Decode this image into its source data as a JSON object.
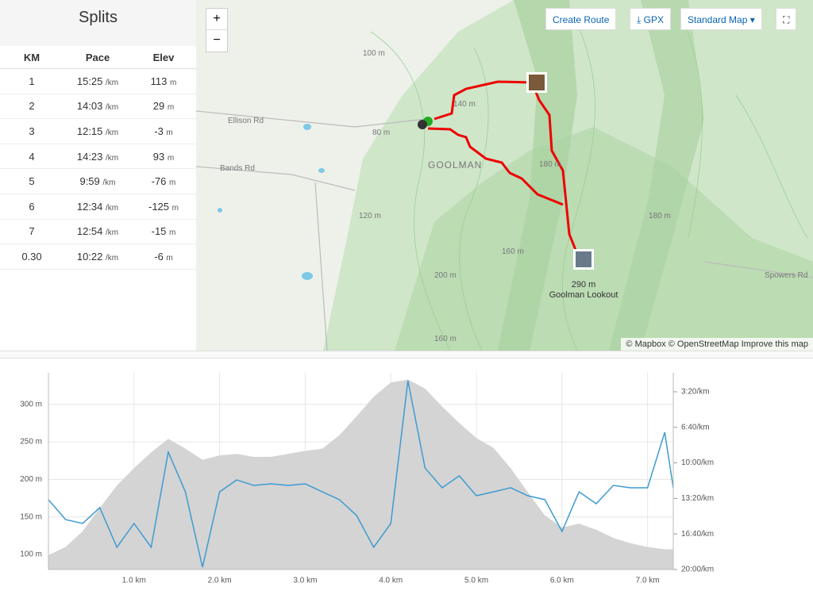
{
  "splits": {
    "title": "Splits",
    "columns": [
      "KM",
      "Pace",
      "Elev"
    ],
    "pace_unit": "/km",
    "elev_unit": "m",
    "rows": [
      [
        "1",
        "15:25",
        "113"
      ],
      [
        "2",
        "14:03",
        "29"
      ],
      [
        "3",
        "12:15",
        "-3"
      ],
      [
        "4",
        "14:23",
        "93"
      ],
      [
        "5",
        "9:59",
        "-76"
      ],
      [
        "6",
        "12:34",
        "-125"
      ],
      [
        "7",
        "12:54",
        "-15"
      ],
      [
        "0.30",
        "10:22",
        "-6"
      ]
    ]
  },
  "map": {
    "zoom_in": "+",
    "zoom_out": "−",
    "create_route": "Create Route",
    "gpx": "GPX",
    "map_style": "Standard Map",
    "roads": [
      "Ellison Rd",
      "Bands Rd",
      "Spowers Rd"
    ],
    "place": "GOOLMAN",
    "contours": [
      "100 m",
      "80 m",
      "140 m",
      "120 m",
      "160 m",
      "180 m",
      "200 m",
      "180 m",
      "160 m"
    ],
    "lookout_elev": "290 m",
    "lookout_name": "Goolman Lookout",
    "attribution": "© Mapbox © OpenStreetMap Improve this map"
  },
  "chart_data": {
    "type": "line",
    "x": [
      0,
      0.2,
      0.4,
      0.6,
      0.8,
      1.0,
      1.2,
      1.4,
      1.6,
      1.8,
      2.0,
      2.2,
      2.4,
      2.6,
      2.8,
      3.0,
      3.2,
      3.4,
      3.6,
      3.8,
      4.0,
      4.2,
      4.4,
      4.6,
      4.8,
      5.0,
      5.2,
      5.4,
      5.6,
      5.8,
      6.0,
      6.2,
      6.4,
      6.6,
      6.8,
      7.0,
      7.2,
      7.3
    ],
    "series": [
      {
        "color": "#d4d4d4",
        "area": true,
        "values": [
          99,
          110,
          131,
          162,
          192,
          215,
          236,
          254,
          241,
          226,
          232,
          234,
          230,
          230,
          234,
          238,
          241,
          259,
          284,
          310,
          329,
          333,
          321,
          297,
          275,
          255,
          242,
          215,
          183,
          152,
          136,
          141,
          133,
          122,
          115,
          110,
          107,
          107
        ]
      },
      {
        "color": "#3d9bd1",
        "axis": "y2",
        "values": [
          807,
          919,
          941,
          852,
          1075,
          941,
          1075,
          539,
          763,
          1187,
          763,
          696,
          727,
          718,
          727,
          718,
          763,
          807,
          896,
          1075,
          941,
          137,
          629,
          740,
          673,
          785,
          763,
          740,
          785,
          807,
          986,
          763,
          830,
          727,
          740,
          740,
          428,
          740
        ]
      }
    ],
    "xlim": [
      0,
      7.3
    ],
    "xticks": [
      {
        "value": 1,
        "label": "1.0 km"
      },
      {
        "value": 2,
        "label": "2.0 km"
      },
      {
        "value": 3,
        "label": "3.0 km"
      },
      {
        "value": 4,
        "label": "4.0 km"
      },
      {
        "value": 5,
        "label": "5.0 km"
      },
      {
        "value": 6,
        "label": "6.0 km"
      },
      {
        "value": 7,
        "label": "7.0 km"
      }
    ],
    "ylim": [
      80,
      342
    ],
    "yticks": [
      {
        "value": 100,
        "label": "100 m"
      },
      {
        "value": 150,
        "label": "150 m"
      },
      {
        "value": 200,
        "label": "200 m"
      },
      {
        "value": 250,
        "label": "250 m"
      },
      {
        "value": 300,
        "label": "300 m"
      }
    ],
    "y2lim": [
      1200,
      93
    ],
    "y2ticks": [
      {
        "value": 200,
        "label": "3:20/km"
      },
      {
        "value": 400,
        "label": "6:40/km"
      },
      {
        "value": 600,
        "label": "10:00/km"
      },
      {
        "value": 800,
        "label": "13:20/km"
      },
      {
        "value": 1000,
        "label": "16:40/km"
      },
      {
        "value": 1200,
        "label": "20:00/km"
      }
    ],
    "grid": true
  }
}
